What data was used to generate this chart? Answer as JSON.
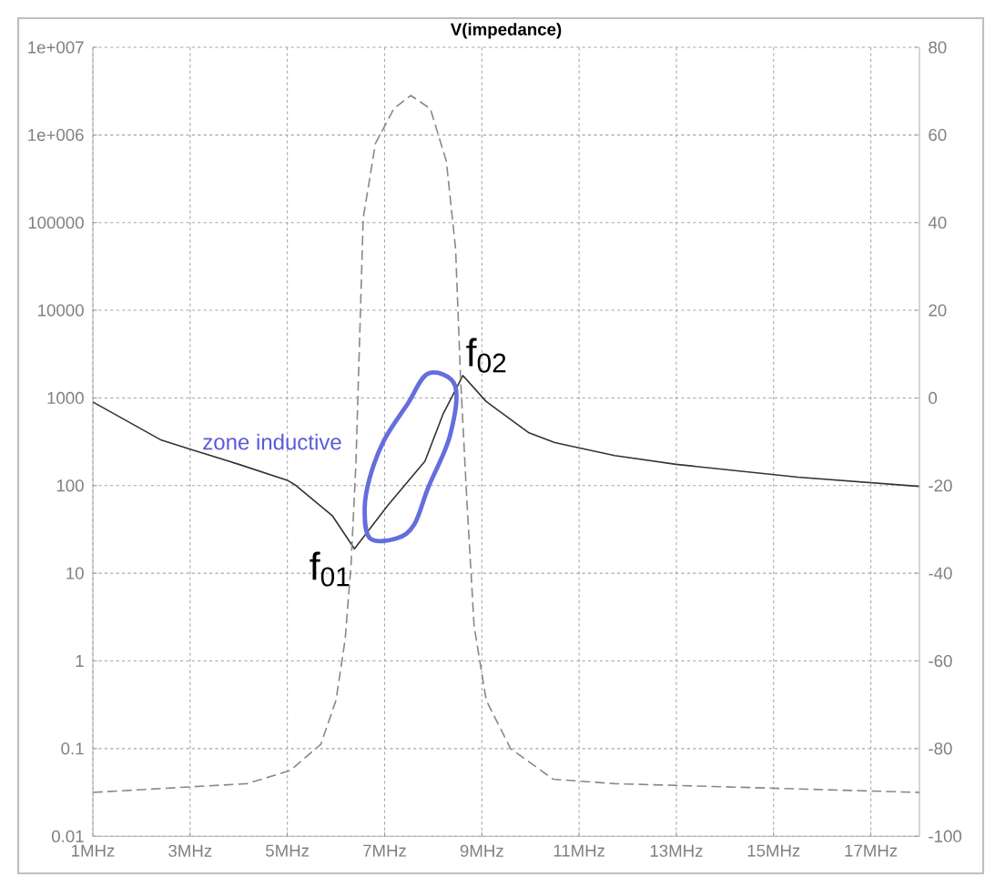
{
  "chart_data": {
    "type": "line",
    "title": "V(impedance)",
    "x": [
      1.0,
      2.41,
      3.0,
      4.0,
      5.0,
      5.18,
      5.93,
      6.38,
      7.07,
      7.83,
      8.2,
      8.61,
      9.09,
      9.97,
      10.5,
      11.73,
      12.99,
      15.5,
      18.0
    ],
    "series": [
      {
        "color": "#333333",
        "line_style": "solid",
        "values": [
          900,
          330,
          260,
          175,
          115,
          100,
          45,
          19,
          60,
          190,
          650,
          1800,
          910,
          400,
          310,
          220,
          175,
          125,
          98
        ]
      },
      {
        "color": "#888888",
        "line_style": "dashed",
        "axis": "y2",
        "x": [
          1.0,
          4.17,
          5.06,
          5.69,
          6.0,
          6.19,
          6.31,
          6.41,
          6.56,
          6.81,
          7.19,
          7.54,
          7.94,
          8.27,
          8.46,
          8.56,
          8.69,
          8.84,
          9.09,
          9.59,
          10.47,
          11.73,
          18.0
        ],
        "values": [
          -90,
          -88,
          -85,
          -79,
          -69,
          -55,
          -38,
          -15,
          41,
          58,
          66,
          69,
          66,
          54,
          34,
          5,
          -23,
          -52,
          -69,
          -80,
          -87,
          -88,
          -90
        ]
      }
    ],
    "xlim": [
      1,
      18
    ],
    "xticks": [
      {
        "value": 1,
        "label": "1MHz"
      },
      {
        "value": 3,
        "label": "3MHz"
      },
      {
        "value": 5,
        "label": "5MHz"
      },
      {
        "value": 7,
        "label": "7MHz"
      },
      {
        "value": 9,
        "label": "9MHz"
      },
      {
        "value": 11,
        "label": "11MHz"
      },
      {
        "value": 13,
        "label": "13MHz"
      },
      {
        "value": 15,
        "label": "15MHz"
      },
      {
        "value": 17,
        "label": "17MHz"
      }
    ],
    "ylim": [
      0.01,
      10000000
    ],
    "yticks": [
      0.01,
      0.1,
      1,
      10,
      100,
      1000,
      10000,
      100000,
      {
        "value": 1000000,
        "label": "1e+006"
      },
      {
        "value": 10000000,
        "label": "1e+007"
      }
    ],
    "y2lim": [
      -100,
      80
    ],
    "y2ticks": [
      -100,
      -80,
      -60,
      -40,
      -20,
      0,
      20,
      40,
      60,
      80
    ],
    "log": "y",
    "grid": true,
    "annotations": [
      {
        "text": "f$_{01}$",
        "x": 6.38,
        "y": 19
      },
      {
        "text": "f$_{02}$",
        "x": 8.61,
        "y": 1800
      },
      "zone inductive"
    ]
  }
}
